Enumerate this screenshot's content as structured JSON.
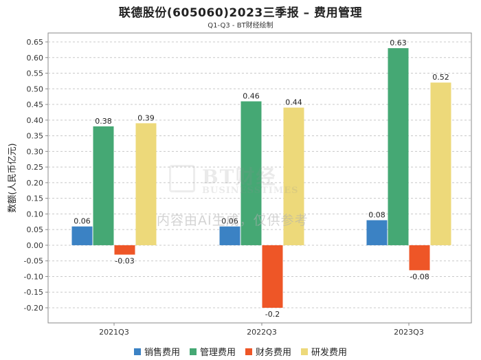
{
  "chart_data": {
    "type": "bar",
    "title": "联德股份(605060)2023三季报 – 费用管理",
    "subtitle": "Q1-Q3 - BT财经绘制",
    "ylabel": "数额(人民币亿元)",
    "xlabel": "",
    "categories": [
      "2021Q3",
      "2022Q3",
      "2023Q3"
    ],
    "ylim": [
      -0.25,
      0.67
    ],
    "yticks": [
      0.65,
      0.6,
      0.55,
      0.5,
      0.45,
      0.4,
      0.35,
      0.3,
      0.25,
      0.2,
      0.15,
      0.1,
      0.05,
      0.0,
      -0.05,
      -0.1,
      -0.15,
      -0.2
    ],
    "ytick_labels": [
      "0.65",
      "0.60",
      "0.55",
      "0.50",
      "0.45",
      "0.40",
      "0.35",
      "0.30",
      "0.25",
      "0.20",
      "0.15",
      "0.10",
      "0.05",
      "0.00",
      "-0.05",
      "-0.10",
      "-0.15",
      "-0.20"
    ],
    "grid": true,
    "legend_position": "bottom",
    "series": [
      {
        "name": "销售费用",
        "color": "#3b82c4",
        "values": [
          0.06,
          0.06,
          0.08
        ],
        "labels": [
          "0.06",
          "0.06",
          "0.08"
        ]
      },
      {
        "name": "管理费用",
        "color": "#45a874",
        "values": [
          0.38,
          0.46,
          0.63
        ],
        "labels": [
          "0.38",
          "0.46",
          "0.63"
        ]
      },
      {
        "name": "财务费用",
        "color": "#ee5627",
        "values": [
          -0.03,
          -0.2,
          -0.08
        ],
        "labels": [
          "-0.03",
          "-0.2",
          "-0.08"
        ]
      },
      {
        "name": "研发费用",
        "color": "#edd97a",
        "values": [
          0.39,
          0.44,
          0.52
        ],
        "labels": [
          "0.39",
          "0.44",
          "0.52"
        ]
      }
    ]
  },
  "watermark": {
    "brand": "BT财经",
    "brand_en": "BUSINESSTIMES",
    "disclaimer": "内容由AI生成，仅供参考"
  }
}
